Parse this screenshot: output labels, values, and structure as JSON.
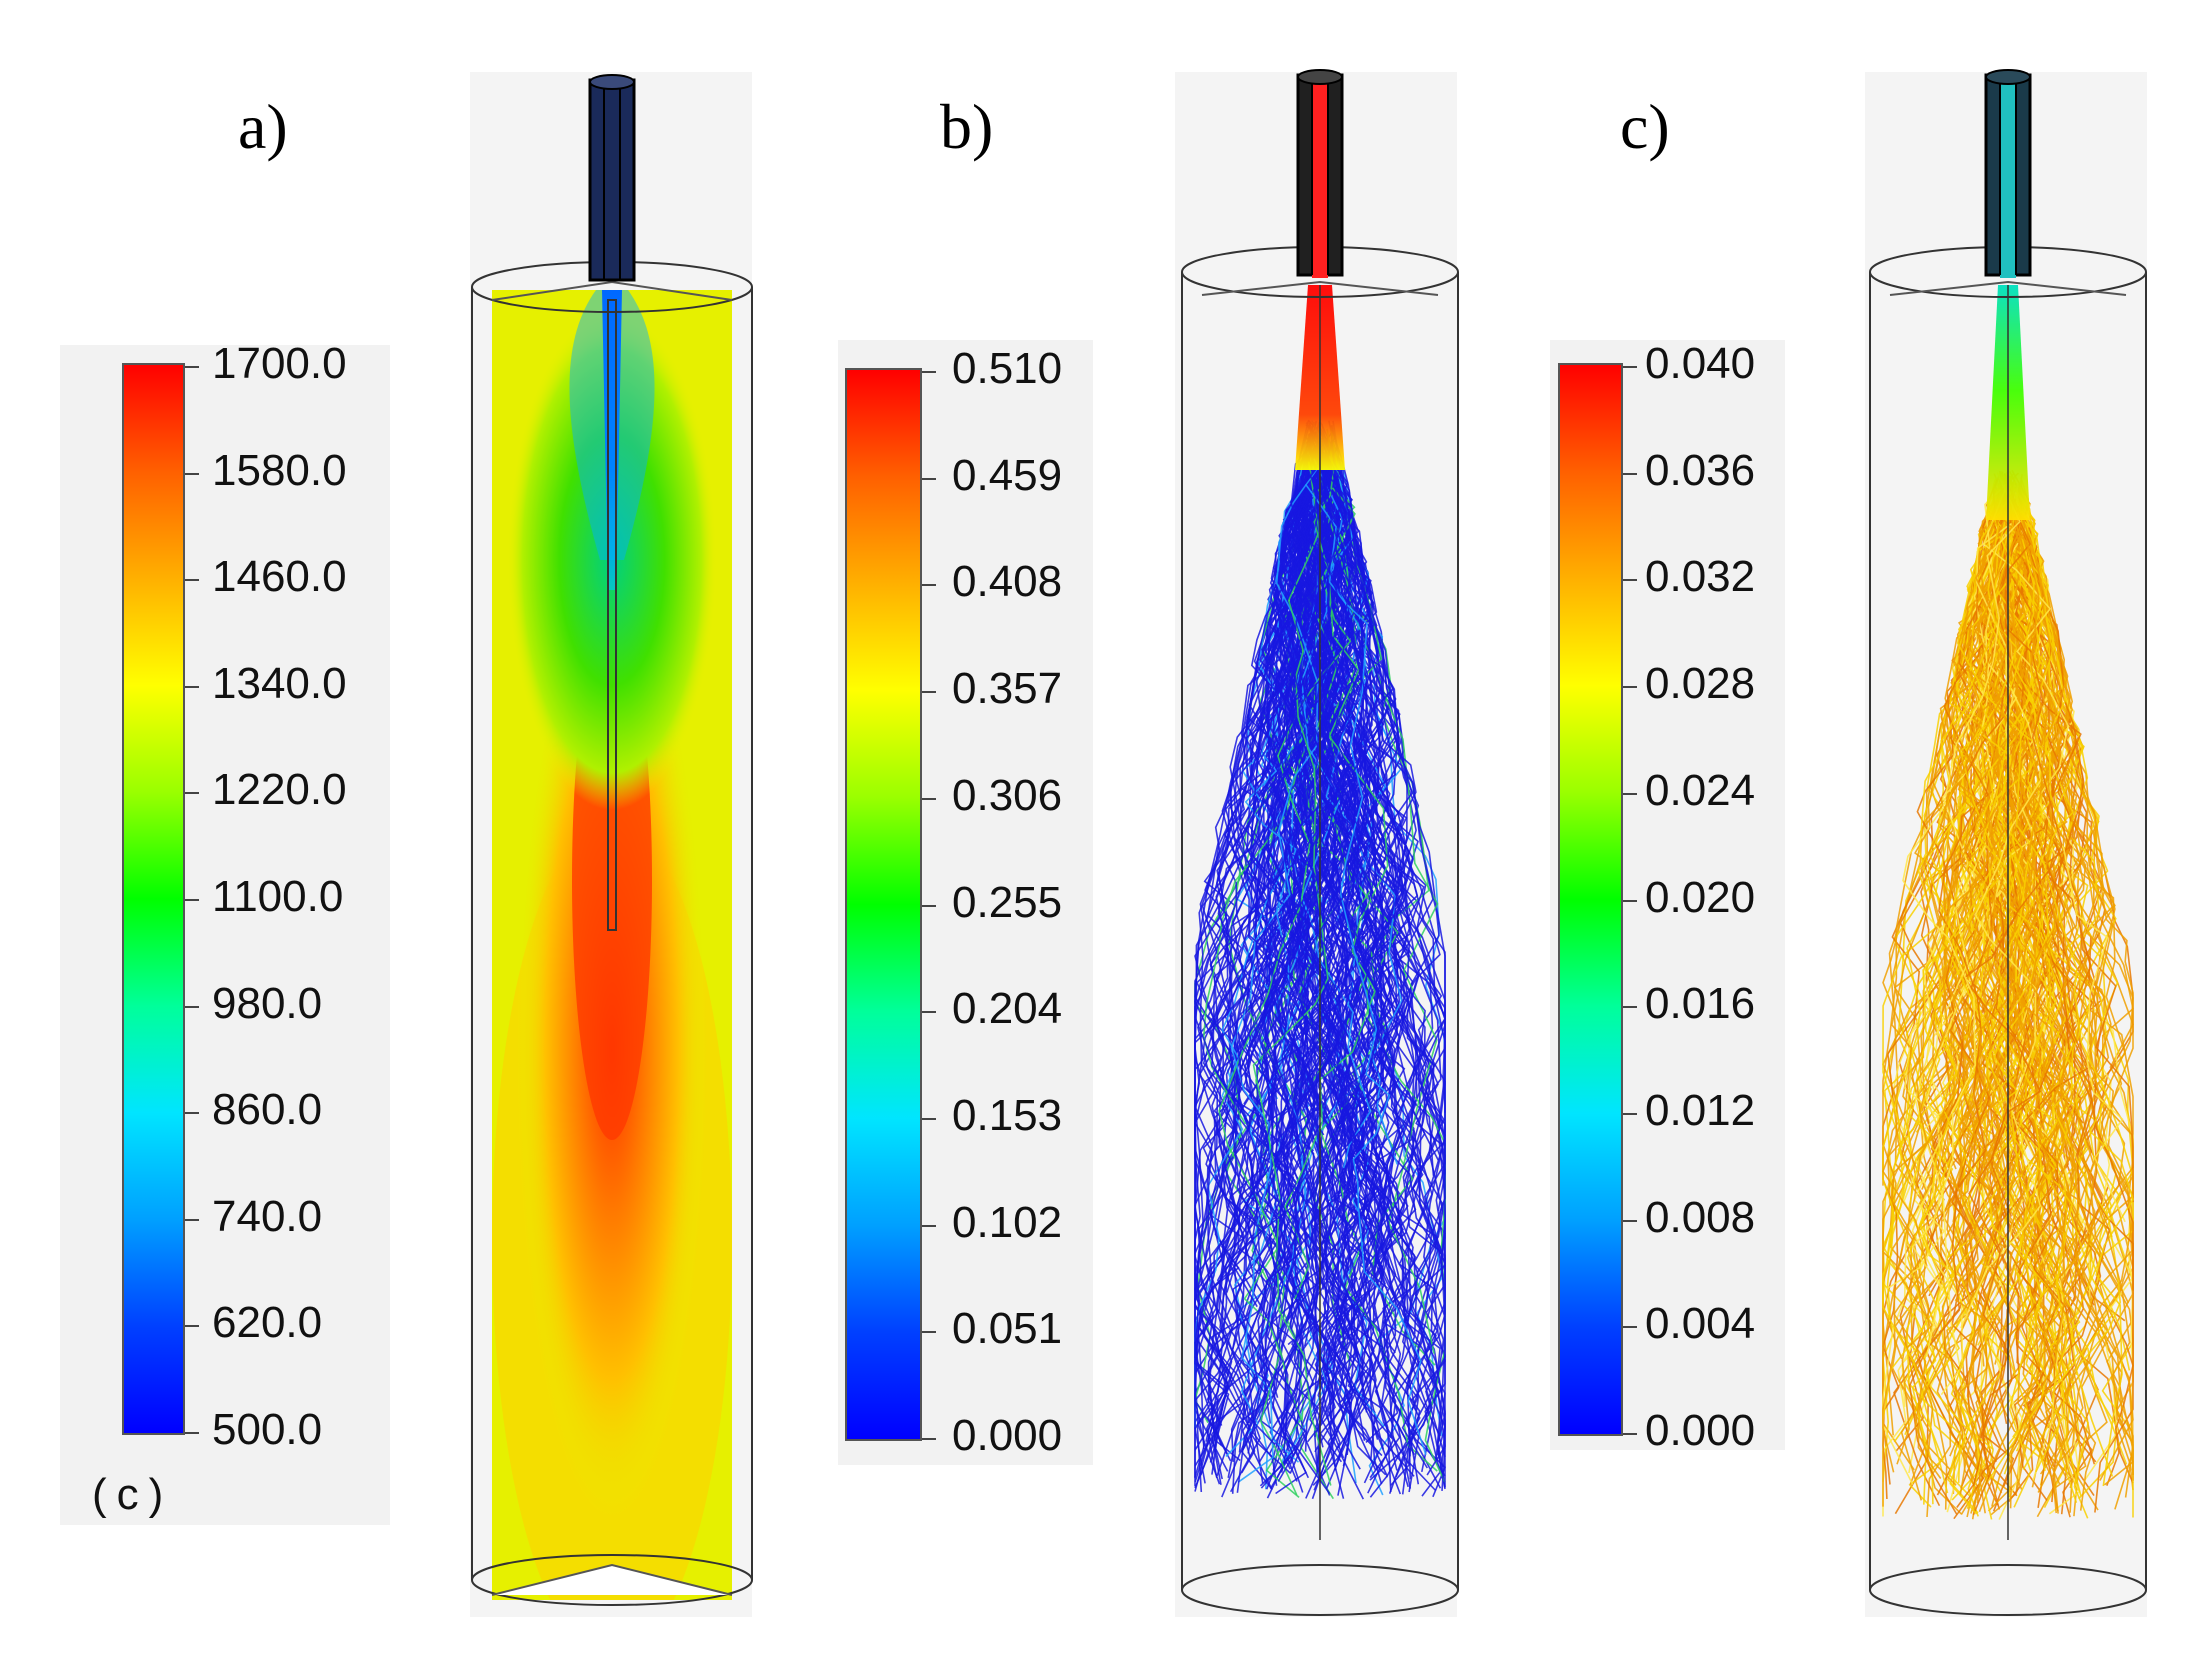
{
  "panels": [
    {
      "label": "a)",
      "legend": {
        "ticks": [
          "1700.0",
          "1580.0",
          "1460.0",
          "1340.0",
          "1220.0",
          "1100.0",
          "980.0",
          "860.0",
          "740.0",
          "620.0",
          "500.0"
        ],
        "unit": "(c)"
      }
    },
    {
      "label": "b)",
      "legend": {
        "ticks": [
          "0.510",
          "0.459",
          "0.408",
          "0.357",
          "0.306",
          "0.255",
          "0.204",
          "0.153",
          "0.102",
          "0.051",
          "0.000"
        ]
      }
    },
    {
      "label": "c)",
      "legend": {
        "ticks": [
          "0.040",
          "0.036",
          "0.032",
          "0.028",
          "0.024",
          "0.020",
          "0.016",
          "0.012",
          "0.008",
          "0.004",
          "0.000"
        ]
      }
    }
  ],
  "colors": {
    "colormap": [
      "#0000ff",
      "#0040ff",
      "#00a0ff",
      "#00e5ff",
      "#00ff9a",
      "#00ff00",
      "#9aff00",
      "#ffff00",
      "#ffb000",
      "#ff6000",
      "#ff0000"
    ],
    "field_base": "#e6f000",
    "track_blue": "#1818e0",
    "track_orange": "#f0a000"
  }
}
